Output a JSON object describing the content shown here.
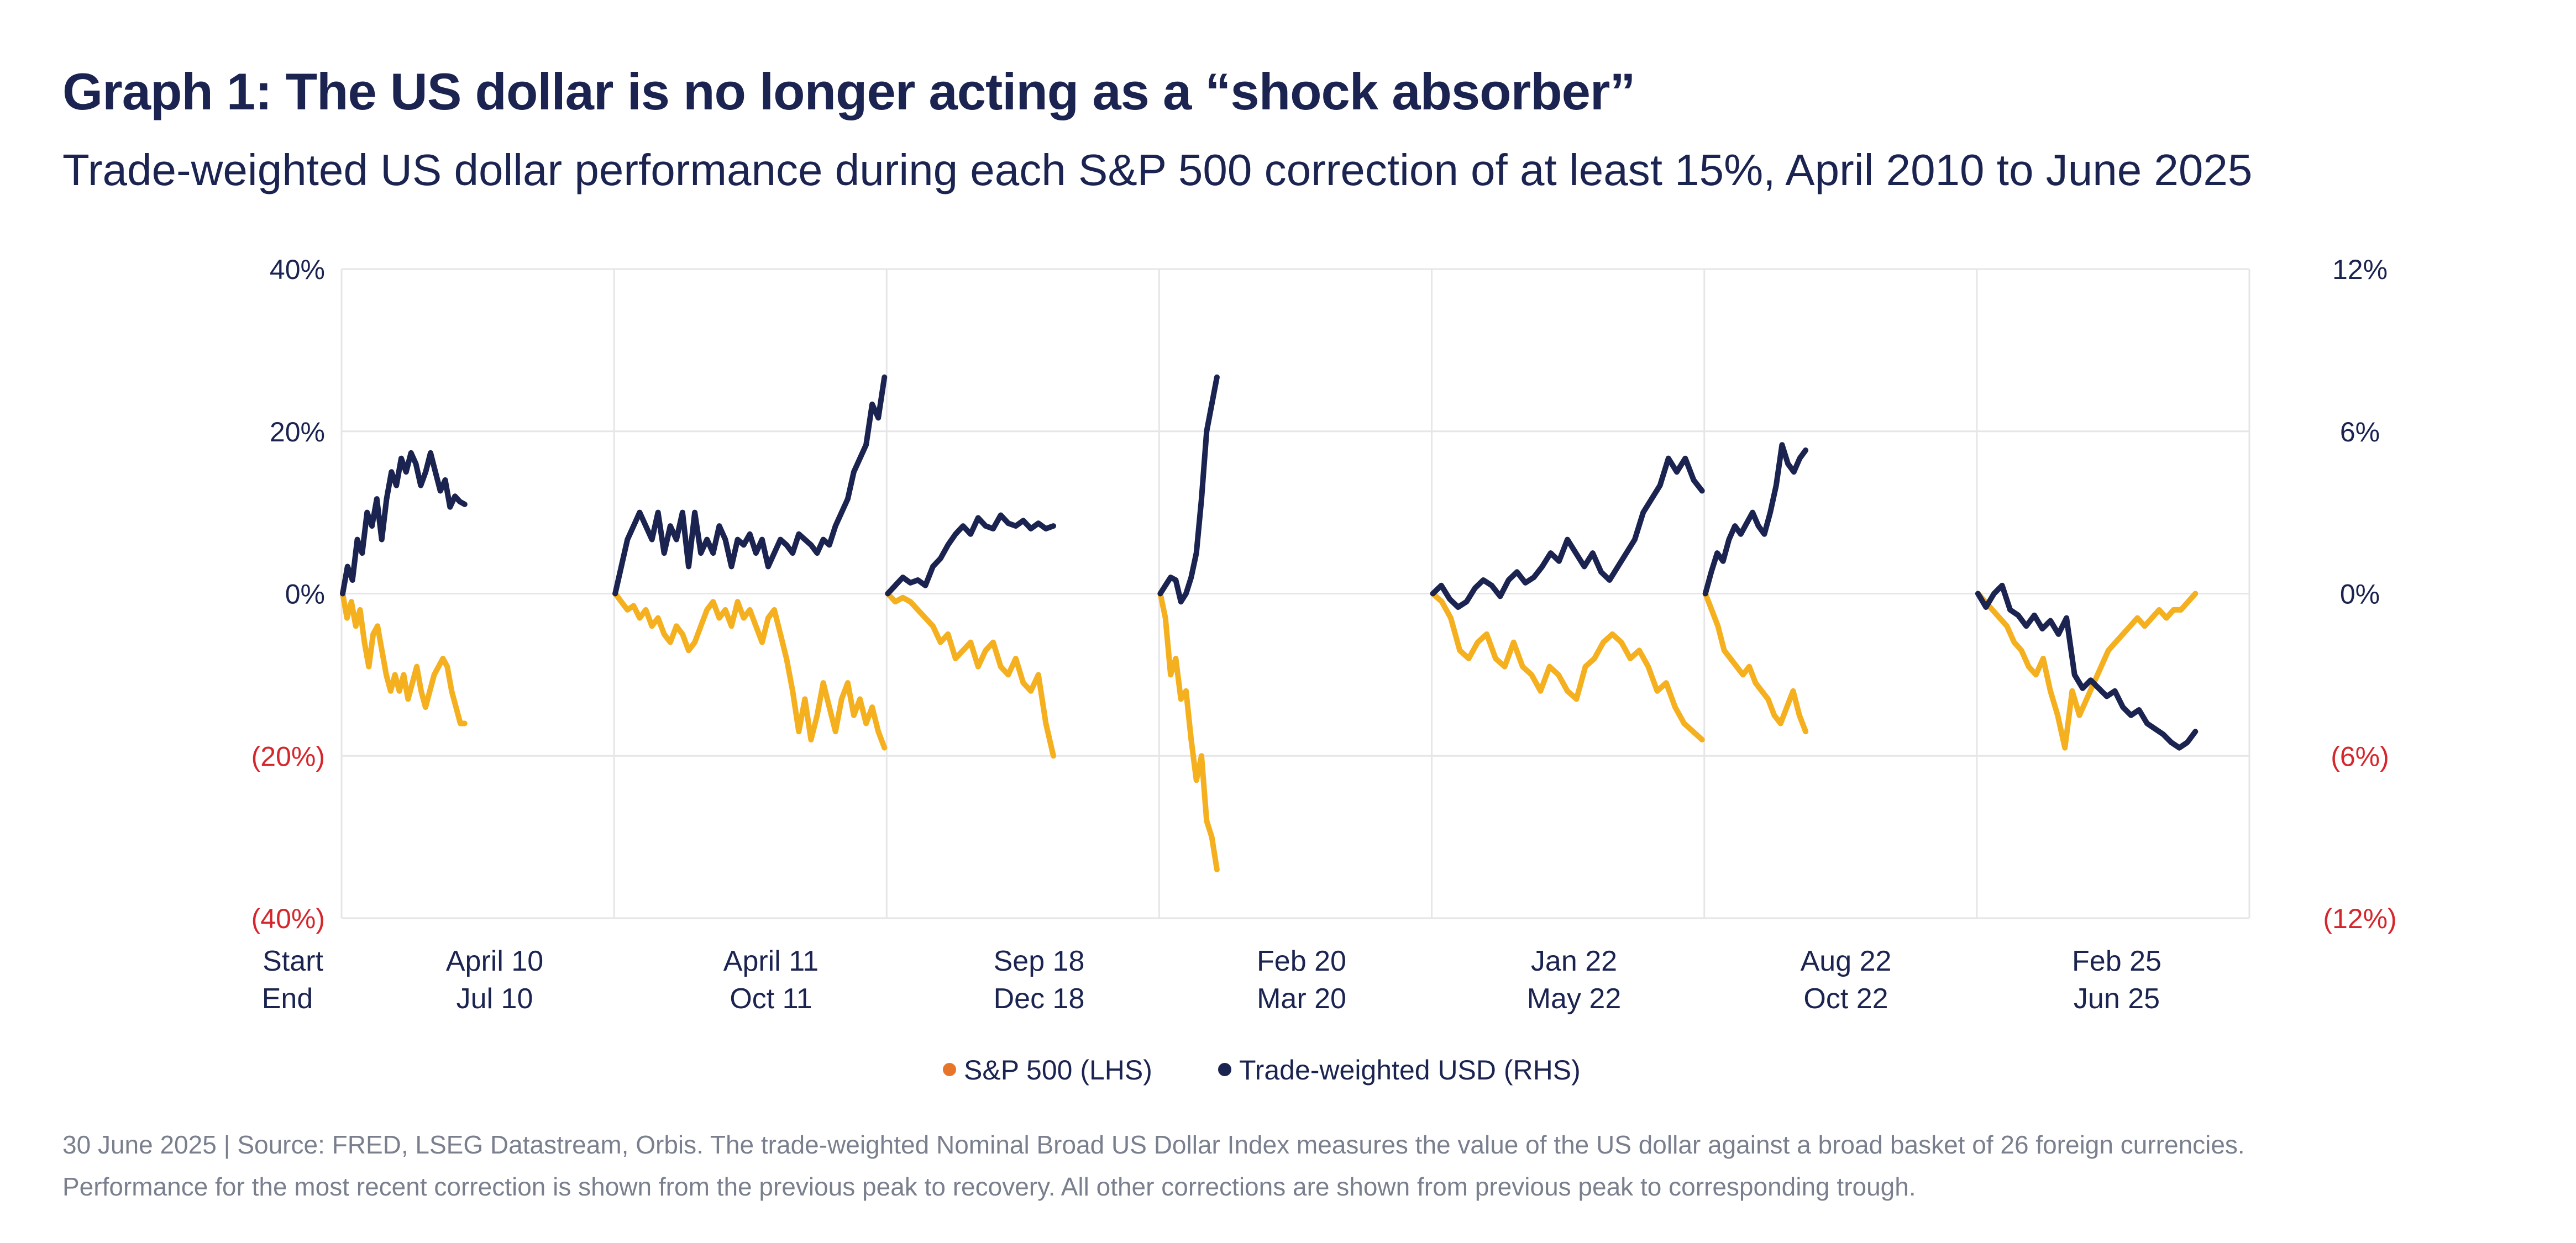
{
  "title": "Graph 1: The US dollar is no longer acting as a “shock absorber”",
  "subtitle": "Trade-weighted US dollar performance during each S&P 500 correction of at least 15%, April 2010 to June 2025",
  "footnote": {
    "line1": "30 June 2025 | Source: FRED, LSEG Datastream, Orbis. The trade-weighted Nominal Broad US Dollar Index measures the value of the US dollar against a broad basket of 26 foreign currencies.",
    "line2": "Performance for the most recent correction is shown from the previous peak to recovery. All other corrections are shown from previous peak to corresponding trough."
  },
  "colors": {
    "sp500": "#f5b020",
    "usd": "#1b2350",
    "negative": "#d7262b",
    "axis_text": "#1b2350",
    "grid": "#e6e6e9",
    "legend_sp_dot": "#e8742a"
  },
  "chart_data": {
    "type": "line",
    "y_left": {
      "label": "S&P 500 (LHS)",
      "range": [
        -40,
        40
      ],
      "ticks": [
        40,
        20,
        0,
        -20,
        -40
      ],
      "tick_labels": [
        "40%",
        "20%",
        "0%",
        "(20%)",
        "(40%)"
      ]
    },
    "y_right": {
      "label": "Trade-weighted USD (RHS)",
      "range": [
        -12,
        12
      ],
      "ticks": [
        12,
        6,
        0,
        -6,
        -12
      ],
      "tick_labels": [
        "12%",
        "6%",
        "0%",
        "(6%)",
        "(12%)"
      ]
    },
    "row_labels": {
      "start": "Start",
      "end": "End"
    },
    "legend": [
      {
        "name": "S&P 500 (LHS)",
        "key": "sp500"
      },
      {
        "name": "Trade-weighted USD (RHS)",
        "key": "usd"
      }
    ],
    "legend_position": "bottom-center",
    "panels": [
      {
        "start": "April 10",
        "end": "Jul 10",
        "sp500": [
          0,
          -3,
          -1,
          -4,
          -2,
          -6,
          -9,
          -5,
          -4,
          -7,
          -10,
          -12,
          -10,
          -12,
          -10,
          -13,
          -11,
          -9,
          -12,
          -14,
          -12,
          -10,
          -9,
          -8,
          -9,
          -12,
          -14,
          -16,
          -16
        ],
        "usd": [
          0,
          1,
          0.5,
          2,
          1.5,
          3,
          2.5,
          3.5,
          2,
          3.5,
          4.5,
          4,
          5,
          4.5,
          5.2,
          4.8,
          4,
          4.5,
          5.2,
          4.5,
          3.8,
          4.2,
          3.2,
          3.6,
          3.4,
          3.3
        ]
      },
      {
        "start": "April 11",
        "end": "Oct 11",
        "sp500": [
          0,
          -1,
          -2,
          -1.5,
          -3,
          -2,
          -4,
          -3,
          -5,
          -6,
          -4,
          -5,
          -7,
          -6,
          -4,
          -2,
          -1,
          -3,
          -2,
          -4,
          -1,
          -3,
          -2,
          -4,
          -6,
          -3,
          -2,
          -5,
          -8,
          -12,
          -17,
          -13,
          -18,
          -15,
          -11,
          -14,
          -17,
          -13,
          -11,
          -15,
          -13,
          -16,
          -14,
          -17,
          -19
        ],
        "usd": [
          0,
          1,
          2,
          2.5,
          3,
          2.5,
          2,
          3,
          1.5,
          2.5,
          2,
          3,
          1,
          3,
          1.5,
          2,
          1.5,
          2.5,
          2,
          1,
          2,
          1.8,
          2.2,
          1.5,
          2,
          1,
          1.5,
          2,
          1.8,
          1.5,
          2.2,
          2,
          1.8,
          1.5,
          2,
          1.8,
          2.5,
          3,
          3.5,
          4.5,
          5,
          5.5,
          7,
          6.5,
          8
        ]
      },
      {
        "start": "Sep 18",
        "end": "Dec 18",
        "sp500": [
          0,
          -1,
          -0.5,
          -1,
          -2,
          -3,
          -4,
          -6,
          -5,
          -8,
          -7,
          -6,
          -9,
          -7,
          -6,
          -9,
          -10,
          -8,
          -11,
          -12,
          -10,
          -16,
          -20
        ],
        "usd": [
          0,
          0.3,
          0.6,
          0.4,
          0.5,
          0.3,
          1,
          1.3,
          1.8,
          2.2,
          2.5,
          2.2,
          2.8,
          2.5,
          2.4,
          2.9,
          2.6,
          2.5,
          2.7,
          2.4,
          2.6,
          2.4,
          2.5
        ]
      },
      {
        "start": "Feb 20",
        "end": "Mar 20",
        "sp500": [
          0,
          -3,
          -10,
          -8,
          -13,
          -12,
          -18,
          -23,
          -20,
          -28,
          -30,
          -34
        ],
        "usd": [
          0,
          0.3,
          0.6,
          0.5,
          -0.3,
          0,
          0.6,
          1.5,
          3.5,
          6,
          7,
          8
        ]
      },
      {
        "start": "Jan 22",
        "end": "May 22",
        "sp500": [
          0,
          -1,
          -3,
          -7,
          -8,
          -6,
          -5,
          -8,
          -9,
          -6,
          -9,
          -10,
          -12,
          -9,
          -10,
          -12,
          -13,
          -9,
          -8,
          -6,
          -5,
          -6,
          -8,
          -7,
          -9,
          -12,
          -11,
          -14,
          -16,
          -17,
          -18
        ],
        "usd": [
          0,
          0.3,
          -0.2,
          -0.5,
          -0.3,
          0.2,
          0.5,
          0.3,
          -0.1,
          0.5,
          0.8,
          0.4,
          0.6,
          1,
          1.5,
          1.2,
          2,
          1.5,
          1,
          1.5,
          0.8,
          0.5,
          1,
          1.5,
          2,
          3,
          3.5,
          4,
          5,
          4.5,
          5,
          4.2,
          3.8
        ]
      },
      {
        "start": "Aug 22",
        "end": "Oct 22",
        "sp500": [
          0,
          -2,
          -4,
          -7,
          -8,
          -9,
          -10,
          -9,
          -11,
          -12,
          -13,
          -15,
          -16,
          -14,
          -12,
          -15,
          -17
        ],
        "usd": [
          0,
          0.8,
          1.5,
          1.2,
          2,
          2.5,
          2.2,
          2.6,
          3,
          2.5,
          2.2,
          3,
          4,
          5.5,
          4.8,
          4.5,
          5,
          5.3
        ]
      },
      {
        "start": "Feb 25",
        "end": "Jun 25",
        "sp500": [
          0,
          -1,
          -2,
          -3,
          -4,
          -6,
          -7,
          -9,
          -10,
          -8,
          -12,
          -15,
          -19,
          -12,
          -15,
          -13,
          -11,
          -9,
          -7,
          -6,
          -5,
          -4,
          -3,
          -4,
          -3,
          -2,
          -3,
          -2,
          -2,
          -1,
          0
        ],
        "usd": [
          0,
          -0.5,
          0,
          0.3,
          -0.6,
          -0.8,
          -1.2,
          -0.8,
          -1.3,
          -1,
          -1.5,
          -0.9,
          -3,
          -3.5,
          -3.2,
          -3.5,
          -3.8,
          -3.6,
          -4.2,
          -4.5,
          -4.3,
          -4.8,
          -5,
          -5.2,
          -5.5,
          -5.7,
          -5.5,
          -5.1
        ]
      }
    ]
  }
}
